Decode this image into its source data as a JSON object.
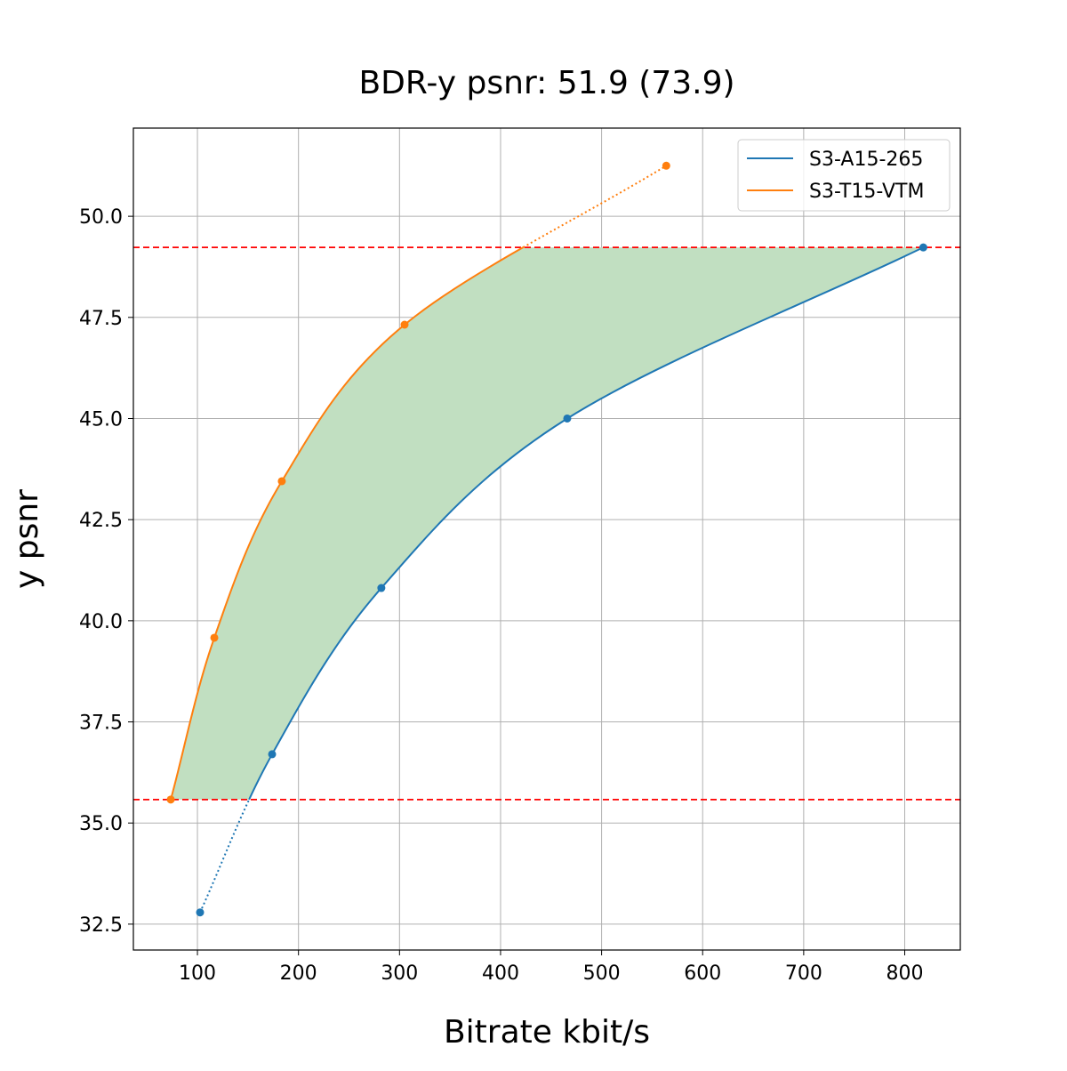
{
  "chart_data": {
    "type": "line",
    "title": "BDR-y psnr: 51.9 (73.9)",
    "xlabel": "Bitrate kbit/s",
    "ylabel": "y psnr",
    "xlim": [
      36.6,
      855
    ],
    "ylim": [
      31.86,
      52.18
    ],
    "grid": true,
    "legend_placement": "top-right",
    "x_ticks": [
      "100",
      "200",
      "300",
      "400",
      "500",
      "600",
      "700",
      "800"
    ],
    "y_ticks": [
      "32.5",
      "35.0",
      "37.5",
      "40.0",
      "42.5",
      "45.0",
      "47.5",
      "50.0"
    ],
    "series": [
      {
        "name": "S3-A15-265",
        "color": "#1f77b4",
        "x": [
          102.6,
          173.9,
          282.0,
          466.0,
          818.4
        ],
        "y": [
          32.79,
          36.7,
          40.81,
          45.0,
          49.23
        ]
      },
      {
        "name": "S3-T15-VTM",
        "color": "#ff7f0e",
        "x": [
          73.6,
          116.7,
          183.5,
          305.0,
          564.0
        ],
        "y": [
          35.58,
          39.58,
          43.45,
          47.32,
          51.25
        ]
      }
    ],
    "reference_lines": {
      "y": [
        35.58,
        49.23
      ],
      "color": "#ff0000",
      "style": "dashed"
    },
    "fill_color": "#c1dfc1"
  }
}
